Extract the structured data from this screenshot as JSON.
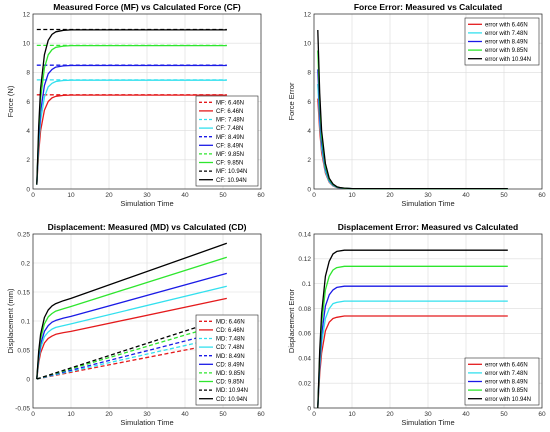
{
  "chart_data": [
    {
      "type": "line",
      "title": "Measured Force (MF) vs Calculated Force (CF)",
      "xlabel": "Simulation Time",
      "ylabel": "Force (N)",
      "xlim": [
        0,
        60
      ],
      "ylim": [
        0,
        12
      ],
      "xticks": [
        0,
        10,
        20,
        30,
        40,
        50,
        60
      ],
      "yticks": [
        0,
        2,
        4,
        6,
        8,
        10,
        12
      ],
      "grid": true,
      "legend_position": "lower-right",
      "series": [
        {
          "name": "MF: 6.46N",
          "color": "#e41a1c",
          "dash": true,
          "x": [
            1,
            51
          ],
          "y": [
            6.46,
            6.46
          ]
        },
        {
          "name": "CF: 6.46N",
          "color": "#e41a1c",
          "dash": false,
          "x": [
            1,
            1.5,
            2,
            3,
            4,
            5,
            6,
            8,
            10,
            51
          ],
          "y": [
            0.3,
            2.5,
            4.0,
            5.4,
            6.0,
            6.25,
            6.36,
            6.42,
            6.44,
            6.44
          ]
        },
        {
          "name": "MF: 7.48N",
          "color": "#33e0ee",
          "dash": true,
          "x": [
            1,
            51
          ],
          "y": [
            7.48,
            7.48
          ]
        },
        {
          "name": "CF: 7.48N",
          "color": "#33e0ee",
          "dash": false,
          "x": [
            1,
            1.5,
            2,
            3,
            4,
            5,
            6,
            8,
            10,
            51
          ],
          "y": [
            0.3,
            3.0,
            4.7,
            6.3,
            7.0,
            7.25,
            7.37,
            7.44,
            7.46,
            7.46
          ]
        },
        {
          "name": "MF: 8.49N",
          "color": "#1a1ae6",
          "dash": true,
          "x": [
            1,
            51
          ],
          "y": [
            8.49,
            8.49
          ]
        },
        {
          "name": "CF: 8.49N",
          "color": "#1a1ae6",
          "dash": false,
          "x": [
            1,
            1.5,
            2,
            3,
            4,
            5,
            6,
            8,
            10,
            51
          ],
          "y": [
            0.3,
            3.4,
            5.3,
            7.1,
            7.9,
            8.2,
            8.36,
            8.44,
            8.47,
            8.47
          ]
        },
        {
          "name": "MF: 9.85N",
          "color": "#2ee62e",
          "dash": true,
          "x": [
            1,
            51
          ],
          "y": [
            9.85,
            9.85
          ]
        },
        {
          "name": "CF: 9.85N",
          "color": "#2ee62e",
          "dash": false,
          "x": [
            1,
            1.5,
            2,
            3,
            4,
            5,
            6,
            8,
            10,
            51
          ],
          "y": [
            0.3,
            3.9,
            6.2,
            8.3,
            9.2,
            9.55,
            9.72,
            9.8,
            9.83,
            9.83
          ]
        },
        {
          "name": "MF: 10.94N",
          "color": "#000000",
          "dash": true,
          "x": [
            1,
            51
          ],
          "y": [
            10.94,
            10.94
          ]
        },
        {
          "name": "CF: 10.94N",
          "color": "#000000",
          "dash": false,
          "x": [
            1,
            1.5,
            2,
            3,
            4,
            5,
            6,
            8,
            10,
            51
          ],
          "y": [
            0.3,
            4.3,
            6.9,
            9.2,
            10.2,
            10.6,
            10.78,
            10.88,
            10.91,
            10.91
          ]
        }
      ]
    },
    {
      "type": "line",
      "title": "Force Error: Measured vs Calculated",
      "xlabel": "Simulation Time",
      "ylabel": "Force Error",
      "xlim": [
        0,
        60
      ],
      "ylim": [
        0,
        12
      ],
      "xticks": [
        0,
        10,
        20,
        30,
        40,
        50,
        60
      ],
      "yticks": [
        0,
        2,
        4,
        6,
        8,
        10,
        12
      ],
      "grid": true,
      "legend_position": "top-right",
      "series": [
        {
          "name": "error with 6.46N",
          "color": "#e41a1c",
          "x": [
            1,
            1.5,
            2,
            3,
            4,
            5,
            6,
            7,
            8,
            10,
            51
          ],
          "y": [
            6.2,
            4.0,
            2.5,
            1.1,
            0.46,
            0.21,
            0.1,
            0.05,
            0.04,
            0.02,
            0.02
          ]
        },
        {
          "name": "error with 7.48N",
          "color": "#33e0ee",
          "x": [
            1,
            1.5,
            2,
            3,
            4,
            5,
            6,
            7,
            8,
            10,
            51
          ],
          "y": [
            7.2,
            4.5,
            2.8,
            1.2,
            0.5,
            0.23,
            0.11,
            0.06,
            0.04,
            0.02,
            0.02
          ]
        },
        {
          "name": "error with 8.49N",
          "color": "#1a1ae6",
          "x": [
            1,
            1.5,
            2,
            3,
            4,
            5,
            6,
            7,
            8,
            10,
            51
          ],
          "y": [
            8.2,
            5.1,
            3.2,
            1.4,
            0.6,
            0.27,
            0.13,
            0.07,
            0.05,
            0.02,
            0.02
          ]
        },
        {
          "name": "error with 9.85N",
          "color": "#2ee62e",
          "x": [
            1,
            1.5,
            2,
            3,
            4,
            5,
            6,
            7,
            8,
            10,
            51
          ],
          "y": [
            9.5,
            5.9,
            3.6,
            1.55,
            0.65,
            0.3,
            0.14,
            0.08,
            0.05,
            0.02,
            0.02
          ]
        },
        {
          "name": "error with 10.94N",
          "color": "#000000",
          "x": [
            1,
            1.5,
            2,
            3,
            4,
            5,
            6,
            7,
            8,
            10,
            51
          ],
          "y": [
            10.9,
            6.6,
            4.0,
            1.75,
            0.74,
            0.34,
            0.16,
            0.09,
            0.06,
            0.03,
            0.03
          ]
        }
      ]
    },
    {
      "type": "line",
      "title": "Displacement: Measured (MD) vs Calculated (CD)",
      "xlabel": "Simulation Time",
      "ylabel": "Displacement (mm)",
      "xlim": [
        0,
        60
      ],
      "ylim": [
        -0.05,
        0.25
      ],
      "xticks": [
        0,
        10,
        20,
        30,
        40,
        50,
        60
      ],
      "yticks": [
        -0.05,
        0,
        0.05,
        0.1,
        0.15,
        0.2,
        0.25
      ],
      "ytick_labels": [
        "-0.05",
        "0",
        "0.05",
        "0.1",
        "0.15",
        "0.2",
        "0.25"
      ],
      "grid": true,
      "legend_position": "lower-right",
      "series": [
        {
          "name": "MD: 6.46N",
          "color": "#e41a1c",
          "dash": true,
          "x": [
            1,
            51
          ],
          "y": [
            0,
            0.064
          ]
        },
        {
          "name": "CD: 6.46N",
          "color": "#e41a1c",
          "dash": false,
          "x": [
            1,
            1.5,
            2,
            3,
            4,
            5,
            6,
            8,
            10,
            51
          ],
          "y": [
            0,
            0.028,
            0.045,
            0.062,
            0.07,
            0.074,
            0.077,
            0.08,
            0.082,
            0.139
          ]
        },
        {
          "name": "MD: 7.48N",
          "color": "#33e0ee",
          "dash": true,
          "x": [
            1,
            51
          ],
          "y": [
            0,
            0.074
          ]
        },
        {
          "name": "CD: 7.48N",
          "color": "#33e0ee",
          "dash": false,
          "x": [
            1,
            1.5,
            2,
            3,
            4,
            5,
            6,
            8,
            10,
            51
          ],
          "y": [
            0,
            0.033,
            0.053,
            0.073,
            0.081,
            0.086,
            0.089,
            0.092,
            0.095,
            0.16
          ]
        },
        {
          "name": "MD: 8.49N",
          "color": "#1a1ae6",
          "dash": true,
          "x": [
            1,
            51
          ],
          "y": [
            0,
            0.084
          ]
        },
        {
          "name": "CD: 8.49N",
          "color": "#1a1ae6",
          "dash": false,
          "x": [
            1,
            1.5,
            2,
            3,
            4,
            5,
            6,
            8,
            10,
            51
          ],
          "y": [
            0,
            0.037,
            0.06,
            0.082,
            0.092,
            0.098,
            0.101,
            0.105,
            0.108,
            0.182
          ]
        },
        {
          "name": "MD: 9.85N",
          "color": "#2ee62e",
          "dash": true,
          "x": [
            1,
            51
          ],
          "y": [
            0,
            0.097
          ]
        },
        {
          "name": "CD: 9.85N",
          "color": "#2ee62e",
          "dash": false,
          "x": [
            1,
            1.5,
            2,
            3,
            4,
            5,
            6,
            8,
            10,
            51
          ],
          "y": [
            0,
            0.043,
            0.069,
            0.095,
            0.107,
            0.113,
            0.117,
            0.121,
            0.125,
            0.21
          ]
        },
        {
          "name": "MD: 10.94N",
          "color": "#000000",
          "dash": true,
          "x": [
            1,
            51
          ],
          "y": [
            0,
            0.106
          ]
        },
        {
          "name": "CD: 10.94N",
          "color": "#000000",
          "dash": false,
          "x": [
            1,
            1.5,
            2,
            3,
            4,
            5,
            6,
            8,
            10,
            51
          ],
          "y": [
            0,
            0.048,
            0.077,
            0.106,
            0.119,
            0.126,
            0.13,
            0.135,
            0.139,
            0.234
          ]
        }
      ]
    },
    {
      "type": "line",
      "title": "Displacement Error: Measured vs Calculated",
      "xlabel": "Simulation Time",
      "ylabel": "Displacement Error",
      "xlim": [
        0,
        60
      ],
      "ylim": [
        0,
        0.14
      ],
      "xticks": [
        0,
        10,
        20,
        30,
        40,
        50,
        60
      ],
      "yticks": [
        0,
        0.02,
        0.04,
        0.06,
        0.08,
        0.1,
        0.12,
        0.14
      ],
      "ytick_labels": [
        "0",
        "0.02",
        "0.04",
        "0.06",
        "0.08",
        "0.1",
        "0.12",
        "0.14"
      ],
      "grid": true,
      "legend_position": "lower-right",
      "series": [
        {
          "name": "error with 6.46N",
          "color": "#e41a1c",
          "x": [
            1,
            1.5,
            2,
            3,
            4,
            5,
            6,
            8,
            10,
            51
          ],
          "y": [
            0,
            0.027,
            0.044,
            0.062,
            0.069,
            0.072,
            0.073,
            0.074,
            0.074,
            0.074
          ]
        },
        {
          "name": "error with 7.48N",
          "color": "#33e0ee",
          "x": [
            1,
            1.5,
            2,
            3,
            4,
            5,
            6,
            8,
            10,
            51
          ],
          "y": [
            0,
            0.032,
            0.052,
            0.072,
            0.08,
            0.084,
            0.085,
            0.086,
            0.086,
            0.086
          ]
        },
        {
          "name": "error with 8.49N",
          "color": "#1a1ae6",
          "x": [
            1,
            1.5,
            2,
            3,
            4,
            5,
            6,
            8,
            10,
            51
          ],
          "y": [
            0,
            0.036,
            0.059,
            0.082,
            0.091,
            0.095,
            0.097,
            0.098,
            0.098,
            0.098
          ]
        },
        {
          "name": "error with 9.85N",
          "color": "#2ee62e",
          "x": [
            1,
            1.5,
            2,
            3,
            4,
            5,
            6,
            8,
            10,
            51
          ],
          "y": [
            0,
            0.042,
            0.068,
            0.095,
            0.106,
            0.111,
            0.113,
            0.114,
            0.114,
            0.114
          ]
        },
        {
          "name": "error with 10.94N",
          "color": "#000000",
          "x": [
            1,
            1.5,
            2,
            3,
            4,
            5,
            6,
            8,
            10,
            51
          ],
          "y": [
            0,
            0.046,
            0.076,
            0.106,
            0.118,
            0.124,
            0.126,
            0.127,
            0.127,
            0.127
          ]
        }
      ]
    }
  ]
}
